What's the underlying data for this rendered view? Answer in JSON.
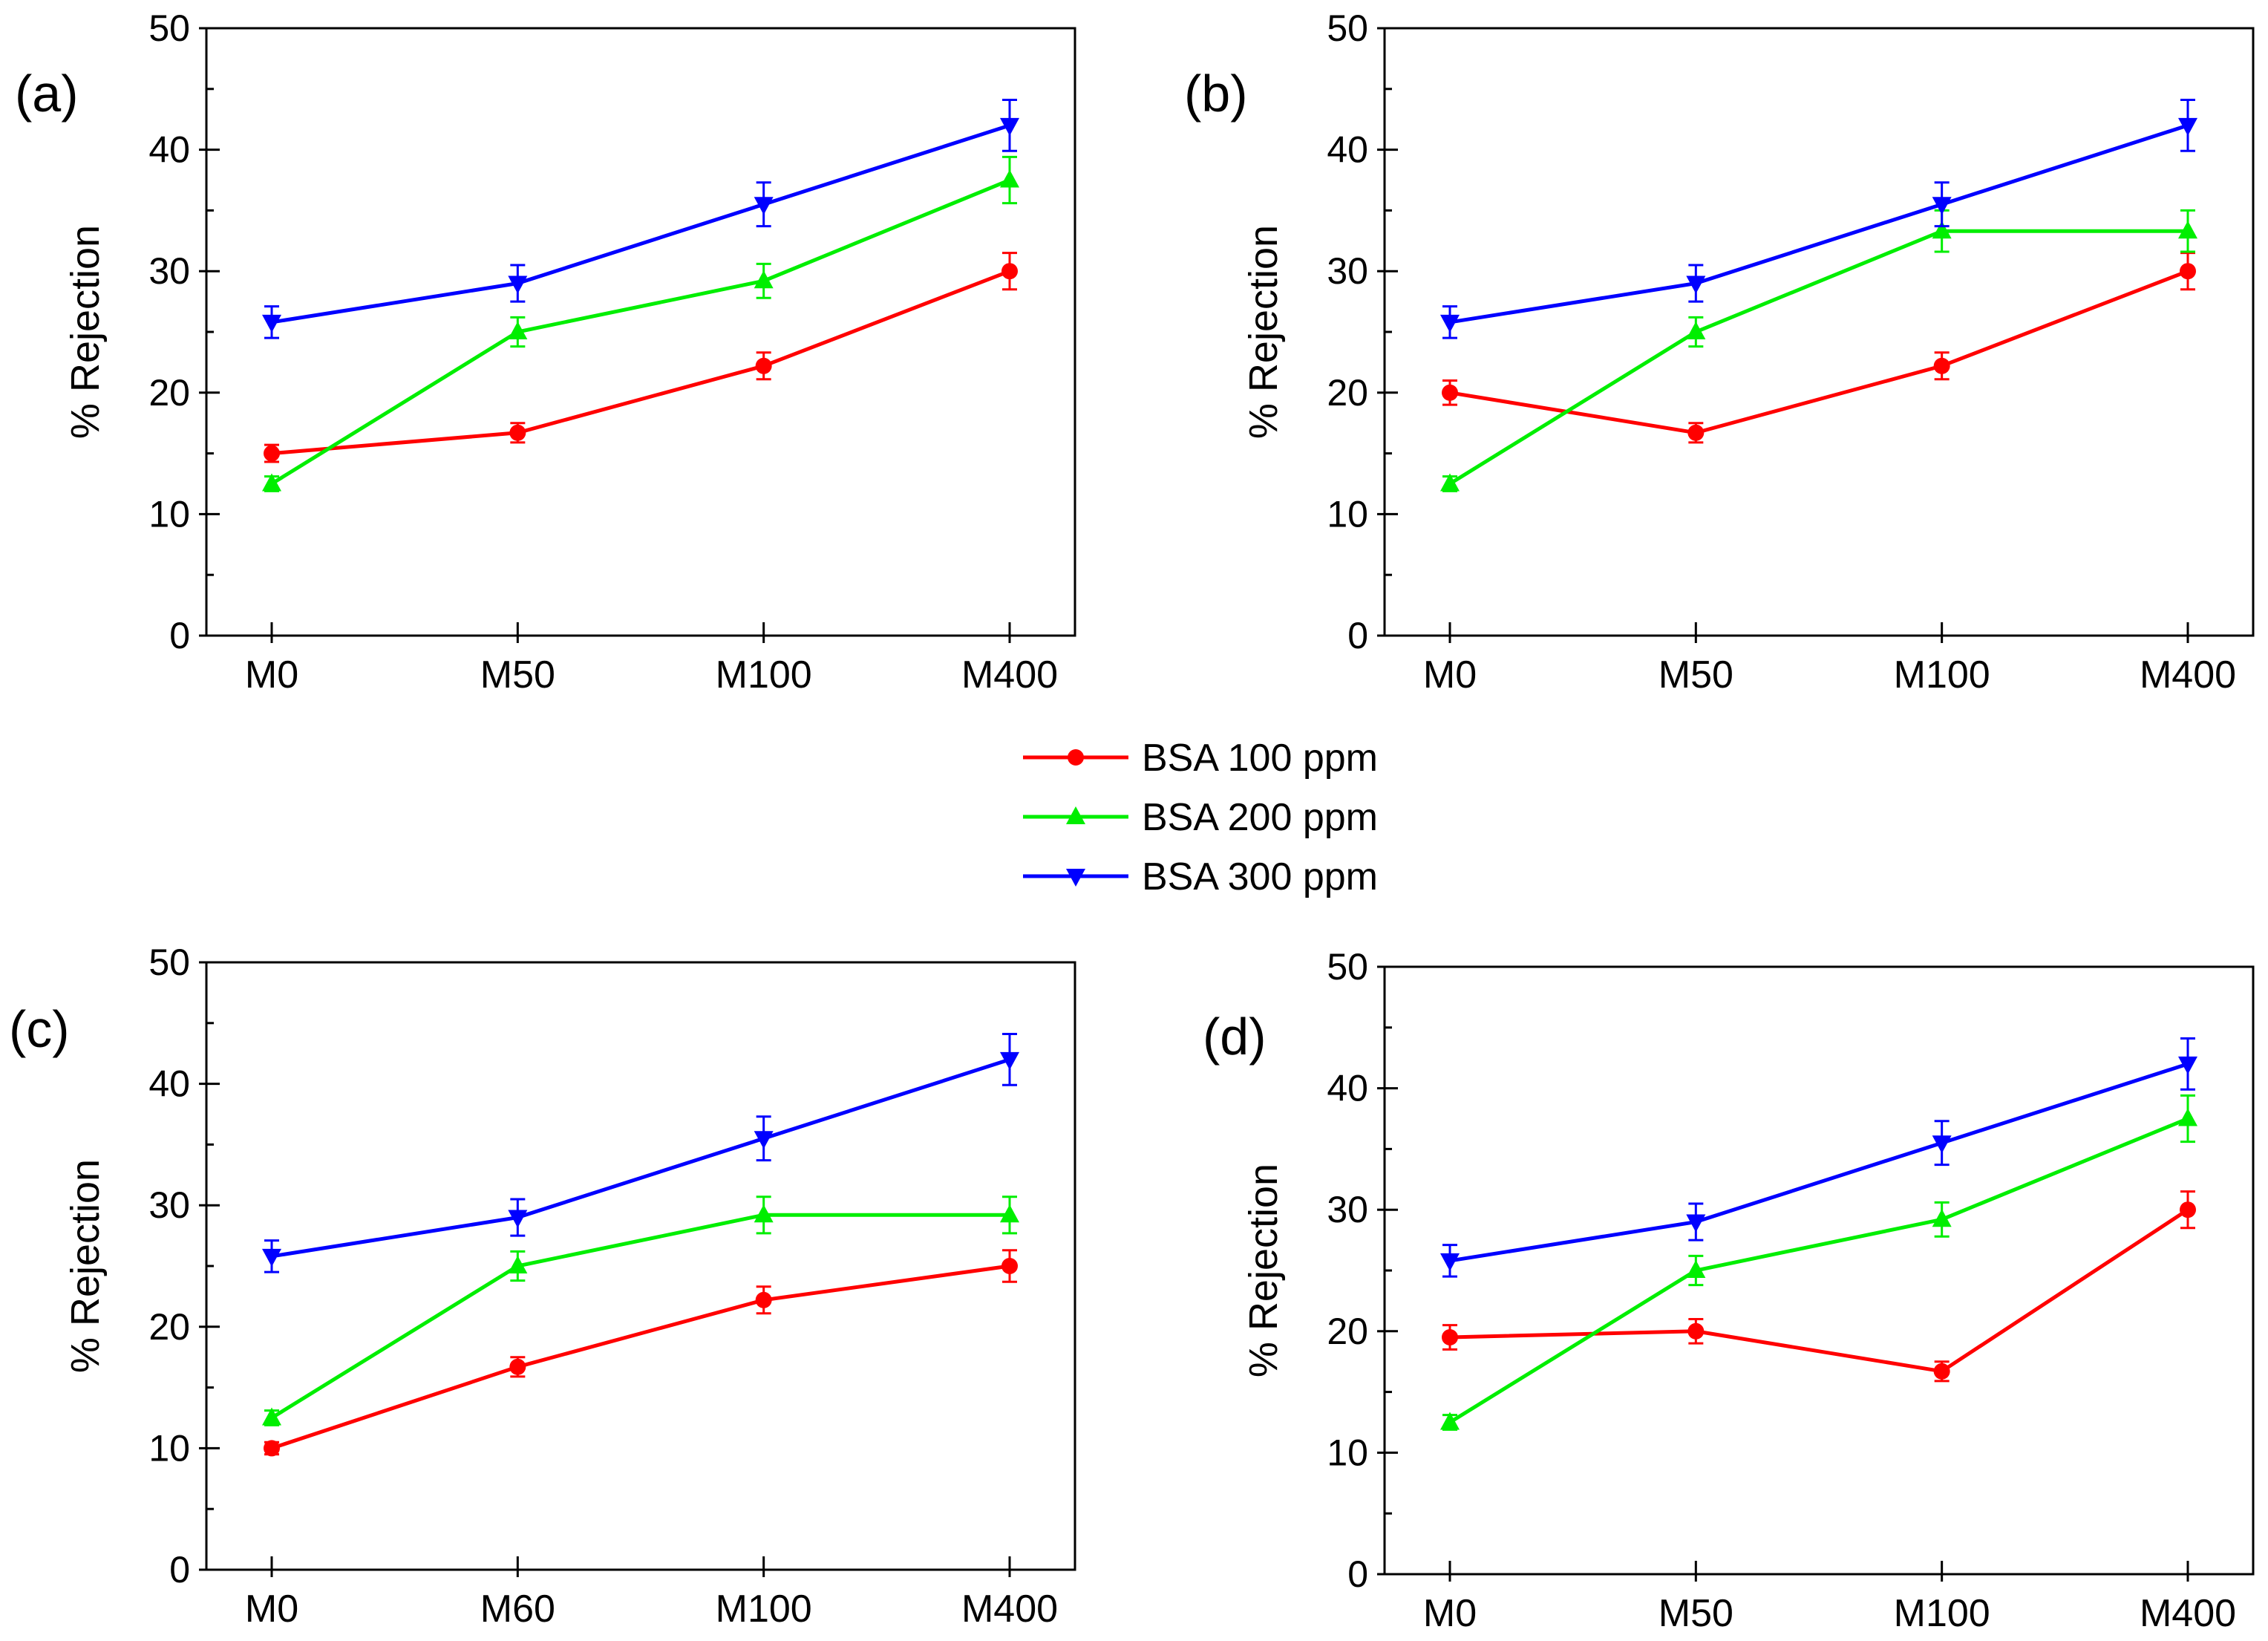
{
  "legend": {
    "placement": "center",
    "entries": [
      {
        "label": "BSA 100 ppm",
        "color": "#ff0000",
        "marker": "circle"
      },
      {
        "label": "BSA 200 ppm",
        "color": "#00ee00",
        "marker": "triangle-up"
      },
      {
        "label": "BSA 300 ppm",
        "color": "#0000ff",
        "marker": "triangle-down"
      }
    ]
  },
  "chart_data": [
    {
      "type": "line",
      "panel_label": "(a)",
      "categories": [
        "M0",
        "M50",
        "M100",
        "M400"
      ],
      "ylabel": "% Rejection",
      "ylim": [
        0,
        50
      ],
      "yticks": [
        0,
        10,
        20,
        30,
        40,
        50
      ],
      "grid": false,
      "series": [
        {
          "name": "BSA 100 ppm",
          "color": "#ff0000",
          "marker": "circle",
          "values": [
            15,
            16.7,
            22.2,
            30
          ],
          "errors": [
            0.7,
            0.8,
            1.1,
            1.5
          ]
        },
        {
          "name": "BSA 200 ppm",
          "color": "#00ee00",
          "marker": "triangle-up",
          "values": [
            12.5,
            25,
            29.2,
            37.5
          ],
          "errors": [
            0.6,
            1.2,
            1.4,
            1.9
          ]
        },
        {
          "name": "BSA 300 ppm",
          "color": "#0000ff",
          "marker": "triangle-down",
          "values": [
            25.8,
            29,
            35.5,
            42
          ],
          "errors": [
            1.3,
            1.5,
            1.8,
            2.1
          ]
        }
      ]
    },
    {
      "type": "line",
      "panel_label": "(b)",
      "categories": [
        "M0",
        "M50",
        "M100",
        "M400"
      ],
      "ylabel": "% Rejection",
      "ylim": [
        0,
        50
      ],
      "yticks": [
        0,
        10,
        20,
        30,
        40,
        50
      ],
      "grid": false,
      "series": [
        {
          "name": "BSA 100 ppm",
          "color": "#ff0000",
          "marker": "circle",
          "values": [
            20,
            16.7,
            22.2,
            30
          ],
          "errors": [
            1.0,
            0.8,
            1.1,
            1.5
          ]
        },
        {
          "name": "BSA 200 ppm",
          "color": "#00ee00",
          "marker": "triangle-up",
          "values": [
            12.5,
            25,
            33.3,
            33.3
          ],
          "errors": [
            0.6,
            1.2,
            1.7,
            1.7
          ]
        },
        {
          "name": "BSA 300 ppm",
          "color": "#0000ff",
          "marker": "triangle-down",
          "values": [
            25.8,
            29,
            35.5,
            42
          ],
          "errors": [
            1.3,
            1.5,
            1.8,
            2.1
          ]
        }
      ]
    },
    {
      "type": "line",
      "panel_label": "(c)",
      "categories": [
        "M0",
        "M60",
        "M100",
        "M400"
      ],
      "ylabel": "% Rejection",
      "ylim": [
        0,
        50
      ],
      "yticks": [
        0,
        10,
        20,
        30,
        40,
        50
      ],
      "grid": false,
      "series": [
        {
          "name": "BSA 100 ppm",
          "color": "#ff0000",
          "marker": "circle",
          "values": [
            10,
            16.7,
            22.2,
            25
          ],
          "errors": [
            0.5,
            0.8,
            1.1,
            1.3
          ]
        },
        {
          "name": "BSA 200 ppm",
          "color": "#00ee00",
          "marker": "triangle-up",
          "values": [
            12.5,
            25,
            29.2,
            29.2
          ],
          "errors": [
            0.6,
            1.2,
            1.5,
            1.5
          ]
        },
        {
          "name": "BSA 300 ppm",
          "color": "#0000ff",
          "marker": "triangle-down",
          "values": [
            25.8,
            29,
            35.5,
            42
          ],
          "errors": [
            1.3,
            1.5,
            1.8,
            2.1
          ]
        }
      ]
    },
    {
      "type": "line",
      "panel_label": "(d)",
      "categories": [
        "M0",
        "M50",
        "M100",
        "M400"
      ],
      "ylabel": "% Rejection",
      "ylim": [
        0,
        50
      ],
      "yticks": [
        0,
        10,
        20,
        30,
        40,
        50
      ],
      "grid": false,
      "series": [
        {
          "name": "BSA 100 ppm",
          "color": "#ff0000",
          "marker": "circle",
          "values": [
            19.5,
            20,
            16.7,
            30
          ],
          "errors": [
            1.0,
            1.0,
            0.8,
            1.5
          ]
        },
        {
          "name": "BSA 200 ppm",
          "color": "#00ee00",
          "marker": "triangle-up",
          "values": [
            12.5,
            25,
            29.2,
            37.5
          ],
          "errors": [
            0.6,
            1.2,
            1.4,
            1.9
          ]
        },
        {
          "name": "BSA 300 ppm",
          "color": "#0000ff",
          "marker": "triangle-down",
          "values": [
            25.8,
            29,
            35.5,
            42
          ],
          "errors": [
            1.3,
            1.5,
            1.8,
            2.1
          ]
        }
      ]
    }
  ]
}
